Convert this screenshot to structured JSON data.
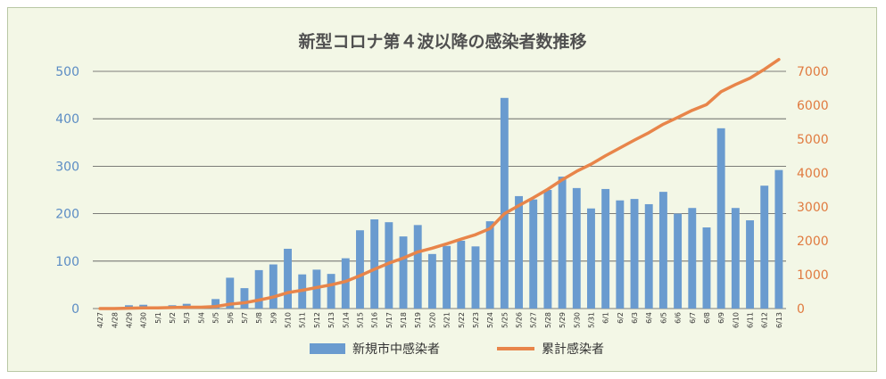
{
  "chart_data": {
    "type": "bar",
    "title": "新型コロナ第４波以降の感染者数推移",
    "categories": [
      "4/27",
      "4/28",
      "4/29",
      "4/30",
      "5/1",
      "5/2",
      "5/3",
      "5/4",
      "5/5",
      "5/6",
      "5/7",
      "5/8",
      "5/9",
      "5/10",
      "5/11",
      "5/12",
      "5/13",
      "5/14",
      "5/15",
      "5/16",
      "5/17",
      "5/18",
      "5/19",
      "5/20",
      "5/21",
      "5/22",
      "5/23",
      "5/24",
      "5/25",
      "5/26",
      "5/27",
      "5/28",
      "5/29",
      "5/30",
      "5/31",
      "6/1",
      "6/2",
      "6/3",
      "6/4",
      "6/5",
      "6/6",
      "6/7",
      "6/8",
      "6/9",
      "6/10",
      "6/11",
      "6/12",
      "6/13"
    ],
    "series": [
      {
        "name": "新規市中感染者",
        "type": "bar",
        "axis": "left",
        "color": "#6a9bcf",
        "values": [
          0,
          0,
          7,
          8,
          0,
          7,
          10,
          1,
          20,
          65,
          43,
          81,
          93,
          126,
          72,
          82,
          73,
          106,
          165,
          188,
          182,
          152,
          176,
          115,
          132,
          143,
          131,
          184,
          444,
          237,
          230,
          250,
          278,
          254,
          211,
          252,
          228,
          231,
          220,
          246,
          200,
          212,
          171,
          380,
          212,
          186,
          259,
          292
        ]
      },
      {
        "name": "累計感染者",
        "type": "line",
        "axis": "right",
        "color": "#e8854a",
        "values": [
          0,
          0,
          10,
          20,
          20,
          30,
          40,
          40,
          60,
          130,
          170,
          250,
          340,
          470,
          540,
          620,
          700,
          800,
          970,
          1160,
          1340,
          1490,
          1670,
          1780,
          1910,
          2050,
          2180,
          2360,
          2800,
          3040,
          3270,
          3520,
          3800,
          4050,
          4260,
          4510,
          4740,
          4970,
          5190,
          5440,
          5640,
          5850,
          6020,
          6400,
          6610,
          6800,
          7060,
          7350
        ]
      }
    ],
    "y_left": {
      "min": 0,
      "max": 500,
      "ticks": [
        0,
        100,
        200,
        300,
        400,
        500
      ],
      "color": "#5b8cc4"
    },
    "y_right": {
      "min": 0,
      "max": 7000,
      "ticks": [
        0,
        1000,
        2000,
        3000,
        4000,
        5000,
        6000,
        7000
      ],
      "color": "#e07a3f"
    },
    "grid": true,
    "legend_position": "bottom-center"
  },
  "legend": {
    "bar_label": "新規市中感染者",
    "line_label": "累計感染者"
  }
}
